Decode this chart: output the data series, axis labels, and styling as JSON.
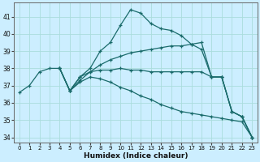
{
  "xlabel": "Humidex (Indice chaleur)",
  "bg_color": "#cceeff",
  "grid_color": "#aadddd",
  "line_color": "#1a6b6b",
  "xlim": [
    -0.5,
    23.5
  ],
  "ylim": [
    33.7,
    41.8
  ],
  "yticks": [
    34,
    35,
    36,
    37,
    38,
    39,
    40,
    41
  ],
  "xticks": [
    0,
    1,
    2,
    3,
    4,
    5,
    6,
    7,
    8,
    9,
    10,
    11,
    12,
    13,
    14,
    15,
    16,
    17,
    18,
    19,
    20,
    21,
    22,
    23
  ],
  "series": [
    {
      "x": [
        0,
        1,
        2,
        3,
        4,
        5,
        6,
        7,
        8,
        9,
        10,
        11,
        12,
        13,
        14,
        15,
        16,
        17,
        18,
        19,
        20,
        21,
        22,
        23
      ],
      "y": [
        36.6,
        37.0,
        37.8,
        38.0,
        38.0,
        36.7,
        37.5,
        38.0,
        39.0,
        39.5,
        40.5,
        41.4,
        41.2,
        40.6,
        40.3,
        40.2,
        39.9,
        39.4,
        39.1,
        37.5,
        37.5,
        35.5,
        35.2,
        34.0
      ]
    },
    {
      "x": [
        4,
        5,
        6,
        7,
        8,
        9,
        10,
        11,
        12,
        13,
        14,
        15,
        16,
        17,
        18,
        19,
        20,
        21,
        22,
        23
      ],
      "y": [
        38.0,
        36.7,
        37.5,
        37.8,
        38.2,
        38.5,
        38.7,
        38.9,
        39.0,
        39.1,
        39.2,
        39.3,
        39.3,
        39.4,
        39.5,
        37.5,
        37.5,
        35.5,
        35.2,
        34.0
      ]
    },
    {
      "x": [
        4,
        5,
        6,
        7,
        8,
        9,
        10,
        11,
        12,
        13,
        14,
        15,
        16,
        17,
        18,
        19,
        20,
        21,
        22,
        23
      ],
      "y": [
        38.0,
        36.7,
        37.3,
        37.8,
        37.9,
        37.9,
        38.0,
        37.9,
        37.9,
        37.8,
        37.8,
        37.8,
        37.8,
        37.8,
        37.8,
        37.5,
        37.5,
        35.5,
        35.2,
        34.0
      ]
    },
    {
      "x": [
        4,
        5,
        6,
        7,
        8,
        9,
        10,
        11,
        12,
        13,
        14,
        15,
        16,
        17,
        18,
        19,
        20,
        21,
        22,
        23
      ],
      "y": [
        38.0,
        36.7,
        37.2,
        37.5,
        37.4,
        37.2,
        36.9,
        36.7,
        36.4,
        36.2,
        35.9,
        35.7,
        35.5,
        35.4,
        35.3,
        35.2,
        35.1,
        35.0,
        34.9,
        34.0
      ]
    }
  ]
}
